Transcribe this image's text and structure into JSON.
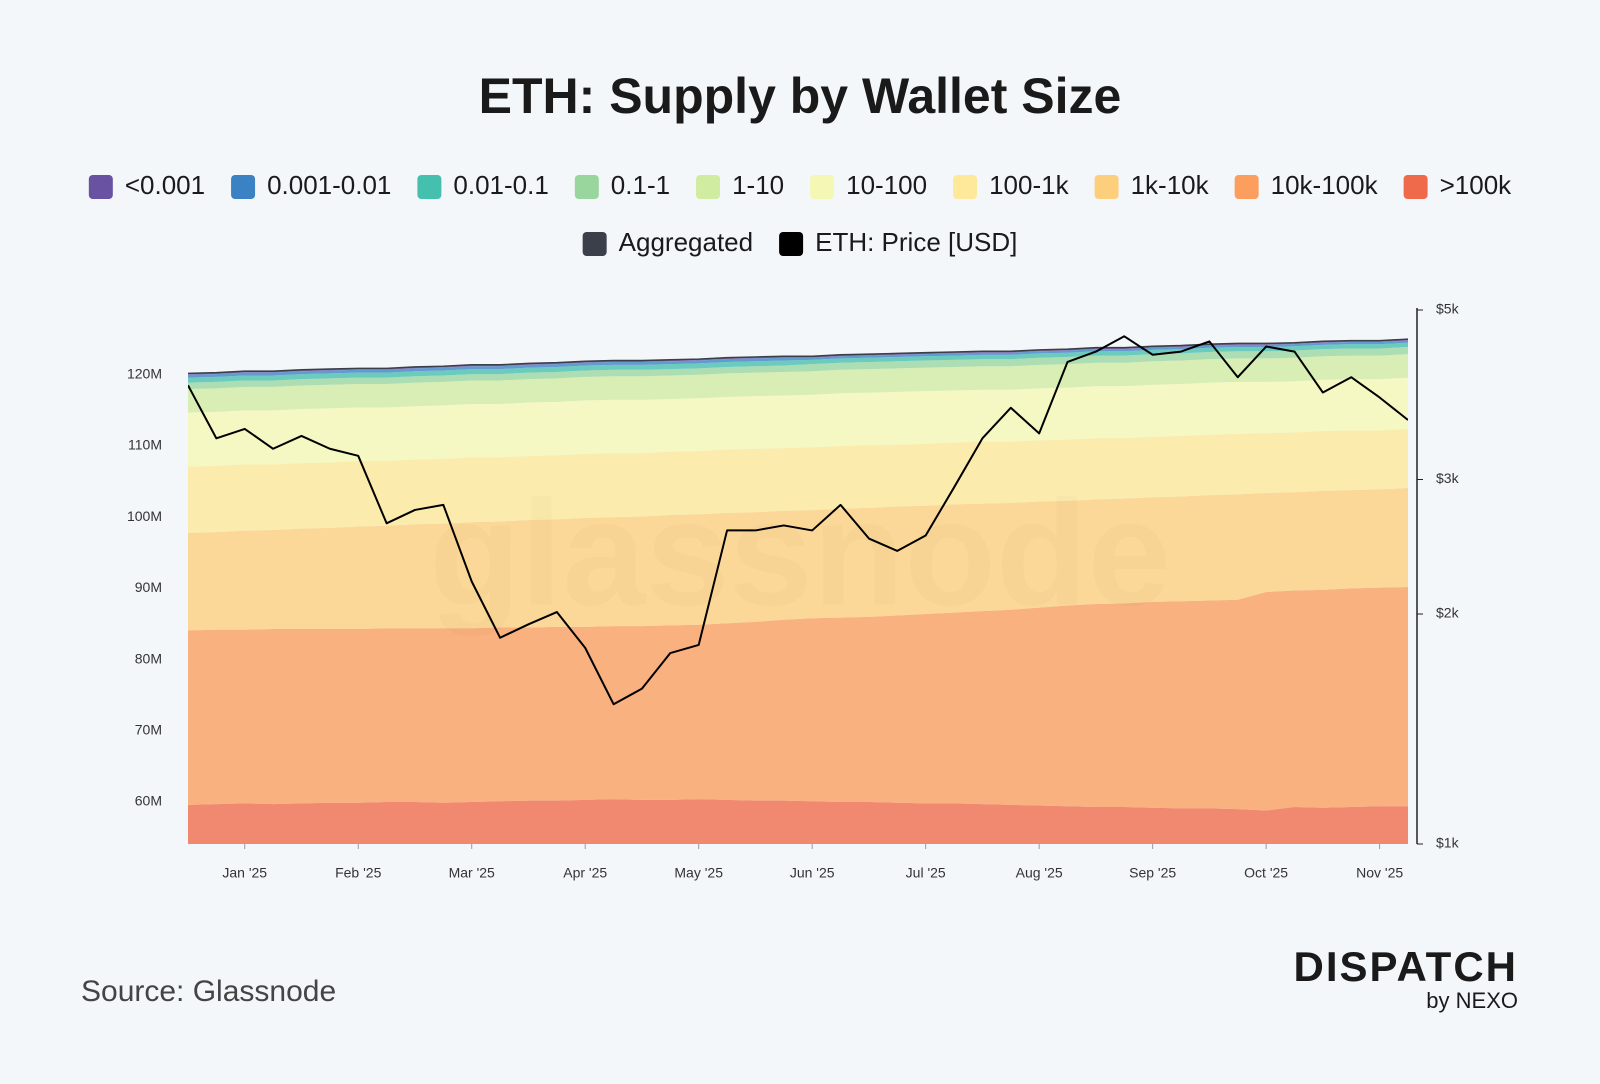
{
  "chart_data": {
    "type": "stacked-area",
    "title": "ETH: Supply by Wallet Size",
    "watermark": "glassnode",
    "source": "Source: Glassnode",
    "brand": "DISPATCH",
    "brand_sub": "by NEXO",
    "categories": [
      null,
      null,
      "Jan '25",
      null,
      null,
      null,
      "Feb '25",
      null,
      null,
      null,
      "Mar '25",
      null,
      null,
      null,
      "Apr '25",
      null,
      null,
      null,
      "May '25",
      null,
      null,
      null,
      "Jun '25",
      null,
      null,
      null,
      "Jul '25",
      null,
      null,
      null,
      "Aug '25",
      null,
      null,
      null,
      "Sep '25",
      null,
      null,
      null,
      "Oct '25",
      null,
      null,
      null,
      "Nov '25",
      null
    ],
    "ylim": [
      54.1,
      129.1
    ],
    "yticks": [
      {
        "value": 60,
        "label": "60M"
      },
      {
        "value": 70,
        "label": "70M"
      },
      {
        "value": 80,
        "label": "80M"
      },
      {
        "value": 90,
        "label": "90M"
      },
      {
        "value": 100,
        "label": "100M"
      },
      {
        "value": 110,
        "label": "110M"
      },
      {
        "value": 120,
        "label": "120M"
      }
    ],
    "y2lim": [
      1000,
      5000
    ],
    "y2log": true,
    "y2ticks": [
      {
        "value": 1000,
        "label": "$1k"
      },
      {
        "value": 2000,
        "label": "$2k"
      },
      {
        "value": 3000,
        "label": "$3k"
      },
      {
        "value": 5000,
        "label": "$5k"
      }
    ],
    "series": [
      {
        "name": "<0.001",
        "color": "#6a52a3",
        "stack": true,
        "values": [
          0.2,
          0.2,
          0.2,
          0.2,
          0.2,
          0.2,
          0.2,
          0.2,
          0.2,
          0.2,
          0.2,
          0.2,
          0.2,
          0.2,
          0.2,
          0.2,
          0.2,
          0.2,
          0.2,
          0.2,
          0.2,
          0.2,
          0.2,
          0.2,
          0.2,
          0.2,
          0.2,
          0.2,
          0.2,
          0.2,
          0.2,
          0.2,
          0.2,
          0.2,
          0.2,
          0.2,
          0.2,
          0.2,
          0.2,
          0.2,
          0.2,
          0.2,
          0.2,
          0.2
        ]
      },
      {
        "name": "0.001-0.01",
        "color": "#3a82c4",
        "stack": true,
        "values": [
          0.4,
          0.4,
          0.4,
          0.4,
          0.4,
          0.4,
          0.4,
          0.4,
          0.4,
          0.4,
          0.4,
          0.4,
          0.4,
          0.4,
          0.4,
          0.4,
          0.4,
          0.4,
          0.4,
          0.4,
          0.4,
          0.4,
          0.3,
          0.3,
          0.3,
          0.3,
          0.3,
          0.3,
          0.3,
          0.3,
          0.3,
          0.3,
          0.3,
          0.3,
          0.3,
          0.3,
          0.3,
          0.3,
          0.3,
          0.3,
          0.3,
          0.3,
          0.3,
          0.3
        ]
      },
      {
        "name": "0.01-0.1",
        "color": "#45bfae",
        "stack": true,
        "values": [
          0.7,
          0.7,
          0.7,
          0.7,
          0.7,
          0.7,
          0.7,
          0.7,
          0.7,
          0.7,
          0.7,
          0.7,
          0.7,
          0.7,
          0.7,
          0.7,
          0.7,
          0.7,
          0.7,
          0.7,
          0.7,
          0.7,
          0.6,
          0.6,
          0.6,
          0.6,
          0.6,
          0.6,
          0.6,
          0.6,
          0.6,
          0.6,
          0.6,
          0.6,
          0.6,
          0.6,
          0.6,
          0.6,
          0.6,
          0.6,
          0.6,
          0.6,
          0.6,
          0.6
        ]
      },
      {
        "name": "0.1-1",
        "color": "#99d69e",
        "stack": true,
        "values": [
          0.9,
          0.9,
          0.9,
          0.9,
          0.9,
          0.9,
          0.9,
          0.9,
          0.9,
          0.9,
          0.9,
          0.9,
          0.9,
          0.9,
          0.9,
          0.9,
          0.9,
          0.9,
          0.9,
          0.9,
          0.9,
          0.9,
          1.0,
          1.0,
          1.0,
          1.0,
          1.0,
          1.0,
          1.0,
          1.0,
          1.0,
          1.0,
          1.0,
          1.0,
          1.0,
          1.0,
          1.0,
          1.0,
          1.0,
          1.0,
          1.0,
          1.0,
          1.0,
          1.0
        ]
      },
      {
        "name": "1-10",
        "color": "#d0eca0",
        "stack": true,
        "values": [
          3.3,
          3.3,
          3.3,
          3.3,
          3.3,
          3.3,
          3.3,
          3.3,
          3.3,
          3.3,
          3.3,
          3.3,
          3.3,
          3.3,
          3.3,
          3.3,
          3.3,
          3.3,
          3.3,
          3.3,
          3.3,
          3.3,
          3.3,
          3.3,
          3.3,
          3.3,
          3.3,
          3.3,
          3.3,
          3.3,
          3.3,
          3.3,
          3.3,
          3.3,
          3.3,
          3.3,
          3.3,
          3.3,
          3.3,
          3.3,
          3.3,
          3.3,
          3.3,
          3.3
        ]
      },
      {
        "name": "10-100",
        "color": "#f5f8b4",
        "stack": true,
        "values": [
          7.6,
          7.6,
          7.6,
          7.6,
          7.6,
          7.6,
          7.5,
          7.5,
          7.5,
          7.5,
          7.5,
          7.5,
          7.5,
          7.5,
          7.5,
          7.5,
          7.5,
          7.4,
          7.4,
          7.4,
          7.4,
          7.4,
          7.4,
          7.4,
          7.4,
          7.4,
          7.4,
          7.3,
          7.3,
          7.3,
          7.3,
          7.3,
          7.3,
          7.3,
          7.3,
          7.3,
          7.3,
          7.3,
          7.2,
          7.2,
          7.2,
          7.2,
          7.2,
          7.2
        ]
      },
      {
        "name": "100-1k",
        "color": "#fde999",
        "stack": true,
        "values": [
          9.3,
          9.3,
          9.3,
          9.2,
          9.2,
          9.2,
          9.2,
          9.1,
          9.1,
          9.1,
          9.1,
          9.0,
          9.0,
          9.0,
          9.0,
          9.0,
          8.9,
          8.9,
          8.9,
          8.9,
          8.9,
          8.8,
          8.8,
          8.8,
          8.8,
          8.7,
          8.7,
          8.7,
          8.7,
          8.6,
          8.6,
          8.6,
          8.6,
          8.5,
          8.5,
          8.5,
          8.5,
          8.5,
          8.4,
          8.4,
          8.4,
          8.4,
          8.3,
          8.3
        ]
      },
      {
        "name": "1k-10k",
        "color": "#fdcf7c",
        "stack": true,
        "values": [
          13.7,
          13.7,
          13.9,
          13.9,
          14.1,
          14.2,
          14.4,
          14.4,
          14.6,
          14.7,
          14.9,
          14.9,
          15.1,
          15.1,
          15.3,
          15.3,
          15.4,
          15.5,
          15.5,
          15.5,
          15.4,
          15.3,
          15.2,
          15.3,
          15.3,
          15.3,
          15.2,
          15.2,
          15.1,
          15.0,
          14.9,
          14.7,
          14.7,
          14.7,
          14.7,
          14.7,
          14.8,
          14.8,
          13.9,
          13.8,
          13.9,
          13.8,
          13.8,
          13.9
        ]
      },
      {
        "name": "10k-100k",
        "color": "#fb9e5e",
        "stack": true,
        "values": [
          24.5,
          24.5,
          24.4,
          24.6,
          24.5,
          24.4,
          24.4,
          24.4,
          24.4,
          24.5,
          24.4,
          24.4,
          24.3,
          24.4,
          24.3,
          24.3,
          24.4,
          24.5,
          24.5,
          24.8,
          25.1,
          25.4,
          25.7,
          25.9,
          26.0,
          26.3,
          26.6,
          26.8,
          27.1,
          27.4,
          27.8,
          28.2,
          28.5,
          28.6,
          28.9,
          29.1,
          29.2,
          29.4,
          30.7,
          30.4,
          30.6,
          30.7,
          30.7,
          30.8
        ]
      },
      {
        "name": ">100k",
        "color": "#ef6a4a",
        "stack": true,
        "values": [
          59.6,
          59.7,
          59.8,
          59.7,
          59.8,
          59.9,
          59.9,
          60.0,
          60.0,
          59.9,
          60.0,
          60.1,
          60.2,
          60.2,
          60.3,
          60.4,
          60.3,
          60.3,
          60.4,
          60.3,
          60.2,
          60.2,
          60.1,
          60.0,
          60.0,
          59.9,
          59.8,
          59.8,
          59.7,
          59.6,
          59.5,
          59.4,
          59.3,
          59.3,
          59.2,
          59.1,
          59.1,
          59.0,
          58.8,
          59.3,
          59.2,
          59.3,
          59.4,
          59.4
        ]
      },
      {
        "name": "Aggregated",
        "color": "#3b3f4a",
        "values": [
          120.2,
          120.3,
          120.5,
          120.5,
          120.7,
          120.8,
          120.9,
          120.9,
          121.1,
          121.2,
          121.4,
          121.4,
          121.6,
          121.7,
          121.9,
          122.0,
          122.0,
          122.1,
          122.2,
          122.4,
          122.5,
          122.6,
          122.6,
          122.8,
          122.9,
          123.0,
          123.1,
          123.2,
          123.3,
          123.3,
          123.5,
          123.6,
          123.8,
          123.8,
          124.0,
          124.1,
          124.3,
          124.4,
          124.4,
          124.5,
          124.7,
          124.8,
          124.8,
          125.0
        ]
      },
      {
        "name": "ETH: Price [USD]",
        "color": "#000000",
        "axis": "y2",
        "values": [
          3985,
          3396,
          3494,
          3291,
          3421,
          3291,
          3222,
          2629,
          2737,
          2779,
          2206,
          1862,
          1939,
          2012,
          1806,
          1524,
          1597,
          1778,
          1822,
          2573,
          2573,
          2612,
          2573,
          2779,
          2511,
          2419,
          2534,
          2929,
          3396,
          3724,
          3447,
          4276,
          4411,
          4619,
          4369,
          4411,
          4548,
          4083,
          4479,
          4411,
          3899,
          4083,
          3841,
          3589
        ]
      }
    ]
  }
}
